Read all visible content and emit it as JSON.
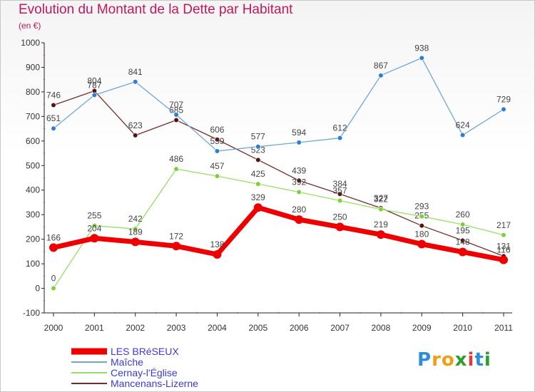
{
  "title": "Evolution du Montant de la Dette par Habitant",
  "subtitle": "(en €)",
  "logo": {
    "letters": [
      "P",
      "r",
      "o",
      "x",
      "i",
      "t",
      "i"
    ],
    "colors": [
      "#2a8fd6",
      "#f39c12",
      "#f39c12",
      "#2aa02a",
      "#e53935",
      "#2a8fd6",
      "#2aa02a"
    ]
  },
  "chart_data": {
    "type": "line",
    "title": "Evolution du Montant de la Dette par Habitant",
    "xlabel": "",
    "ylabel": "(en €)",
    "categories": [
      "2000",
      "2001",
      "2002",
      "2003",
      "2004",
      "2005",
      "2006",
      "2007",
      "2008",
      "2009",
      "2010",
      "2011"
    ],
    "ylim": [
      -100,
      1000
    ],
    "yticks": [
      -100,
      0,
      100,
      200,
      300,
      400,
      500,
      600,
      700,
      800,
      900,
      1000
    ],
    "grid": false,
    "legend_position": "bottom-left",
    "series": [
      {
        "name": "LES BRéSEUX",
        "color": "#ee0000",
        "values": [
          166,
          204,
          189,
          172,
          138,
          329,
          280,
          250,
          219,
          180,
          148,
          116
        ],
        "labels": [
          "166",
          "204",
          "189",
          "172",
          "138",
          "329",
          "280",
          "250",
          "219",
          "180",
          "148",
          "116"
        ]
      },
      {
        "name": "Maîche",
        "color": "#6fa7d4",
        "values": [
          651,
          787,
          841,
          707,
          559,
          577,
          594,
          612,
          867,
          938,
          624,
          729
        ],
        "labels": [
          "651",
          "787",
          "841",
          "707",
          "559",
          "577",
          "594",
          "612",
          "867",
          "938",
          "624",
          "729"
        ]
      },
      {
        "name": "Cernay-l'Église",
        "color": "#99dd66",
        "values": [
          0,
          255,
          242,
          486,
          457,
          425,
          392,
          357,
          322,
          293,
          260,
          217
        ],
        "labels": [
          "0",
          "255",
          "242",
          "486",
          "457",
          "425",
          "392",
          "357",
          "322",
          "293",
          "260",
          "217"
        ]
      },
      {
        "name": "Mancenans-Lizerne",
        "color": "#7a2a2a",
        "values": [
          746,
          804,
          623,
          685,
          606,
          523,
          439,
          384,
          327,
          255,
          195,
          131
        ],
        "labels": [
          "746",
          "804",
          "623",
          "685",
          "606",
          "523",
          "439",
          "384",
          "327",
          "255",
          "195",
          "131"
        ]
      }
    ]
  }
}
